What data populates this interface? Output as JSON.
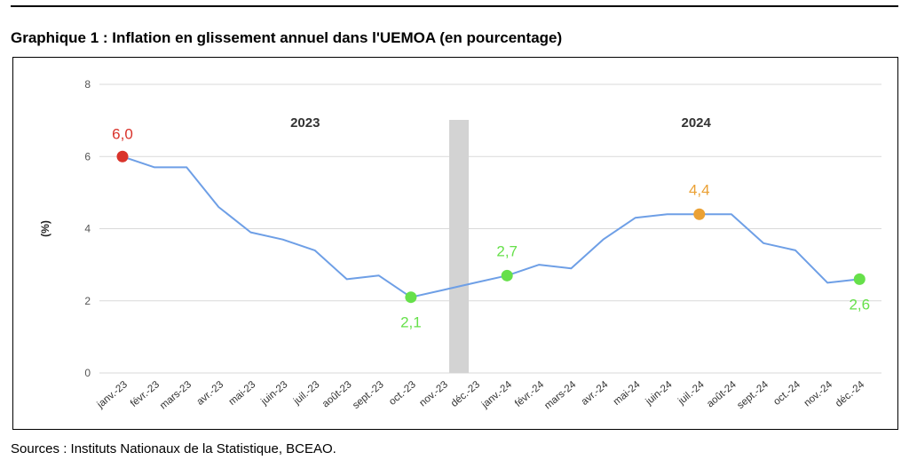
{
  "title": "Graphique 1 : Inflation en glissement annuel dans l'UEMOA (en pourcentage)",
  "source": "Sources : Instituts Nationaux de la Statistique, BCEAO.",
  "chart_data": {
    "type": "line",
    "title": "Graphique 1 : Inflation en glissement annuel dans l'UEMOA (en pourcentage)",
    "xlabel": "",
    "ylabel": "(%)",
    "ylim": [
      0,
      8
    ],
    "yticks": [
      "0",
      "2",
      "4",
      "6",
      "8"
    ],
    "grid": true,
    "categories": [
      "janv.-23",
      "févr.-23",
      "mars-23",
      "avr.-23",
      "mai-23",
      "juin-23",
      "juil.-23",
      "août-23",
      "sept.-23",
      "oct.-23",
      "nov.-23",
      "déc.-23",
      "janv.-24",
      "févr.-24",
      "mars-24",
      "avr.-24",
      "mai-24",
      "juin-24",
      "juil.-24",
      "août-24",
      "sept.-24",
      "oct.-24",
      "nov.-24",
      "déc.-24"
    ],
    "series": [
      {
        "values": [
          6.0,
          5.7,
          5.7,
          4.6,
          3.9,
          3.7,
          3.4,
          2.6,
          2.7,
          2.1,
          2.3,
          2.5,
          2.7,
          3.0,
          2.9,
          3.7,
          4.3,
          4.4,
          4.4,
          4.4,
          3.6,
          3.4,
          2.5,
          2.6
        ],
        "color": "#6e9fe6"
      }
    ],
    "highlights": [
      {
        "index": 0,
        "label": "6,0",
        "color": "#d9332b"
      },
      {
        "index": 9,
        "label": "2,1",
        "color": "#66e04a",
        "position": "below"
      },
      {
        "index": 12,
        "label": "2,7",
        "color": "#66e04a",
        "position": "above"
      },
      {
        "index": 18,
        "label": "4,4",
        "color": "#eba134",
        "position": "above"
      },
      {
        "index": 23,
        "label": "2,6",
        "color": "#66e04a",
        "position": "below"
      }
    ],
    "year_labels": [
      {
        "text": "2023",
        "index": 5.7
      },
      {
        "text": "2024",
        "index": 17.9
      }
    ],
    "separator": {
      "between": [
        10,
        11
      ]
    },
    "colors": {
      "line": "#6e9fe6",
      "grid": "#d9d9d9",
      "separator": "#d3d3d3"
    }
  }
}
